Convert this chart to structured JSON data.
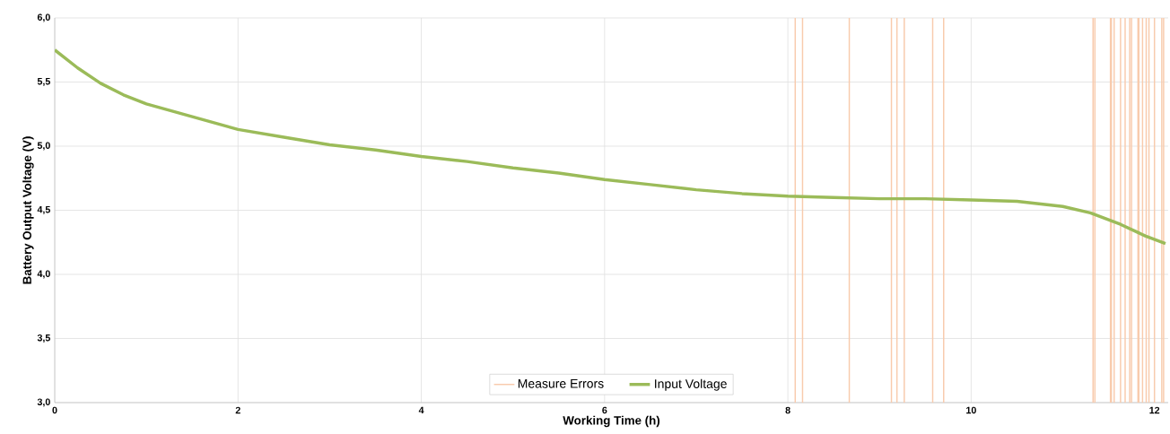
{
  "chart_data": {
    "type": "line",
    "xlabel": "Working Time (h)",
    "ylabel": "Battery Output Voltage (V)",
    "xlim": [
      0,
      12.15
    ],
    "ylim": [
      3,
      6
    ],
    "xticks": [
      0,
      2,
      4,
      6,
      8,
      10,
      12
    ],
    "yticks": [
      {
        "value": 3,
        "label": "3,0"
      },
      {
        "value": 3.5,
        "label": "3,5"
      },
      {
        "value": 4,
        "label": "4,0"
      },
      {
        "value": 4.5,
        "label": "4,5"
      },
      {
        "value": 5,
        "label": "5,0"
      },
      {
        "value": 5.5,
        "label": "5,5"
      },
      {
        "value": 6,
        "label": "6,0"
      }
    ],
    "grid": true,
    "legend": "bottom",
    "marker": "none",
    "line_style": "solid",
    "series": [
      {
        "name": "Measure Errors",
        "color": "#f8cbad",
        "x": [
          8.08,
          8.08,
          null,
          8.16,
          8.16,
          null,
          8.67,
          8.67,
          null,
          9.13,
          9.13,
          null,
          9.19,
          9.19,
          null,
          9.27,
          9.27,
          null,
          9.58,
          9.58,
          null,
          9.7,
          9.7,
          null,
          11.33,
          11.33,
          null,
          11.35,
          11.35,
          null,
          11.52,
          11.52,
          null,
          11.53,
          11.53,
          null,
          11.56,
          11.56,
          null,
          11.63,
          11.63,
          null,
          11.68,
          11.68,
          null,
          11.73,
          11.73,
          null,
          11.75,
          11.75,
          null,
          11.82,
          11.82,
          null,
          11.83,
          11.83,
          null,
          11.87,
          11.87,
          null,
          11.91,
          11.91,
          null,
          11.94,
          11.94,
          null,
          12.0,
          12.0,
          null,
          12.08,
          12.08,
          null,
          12.1,
          12.1,
          null
        ],
        "values": [
          3,
          6,
          null,
          3,
          6,
          null,
          3,
          6,
          null,
          3,
          6,
          null,
          3,
          6,
          null,
          3,
          6,
          null,
          3,
          6,
          null,
          3,
          6,
          null,
          3,
          6,
          null,
          3,
          6,
          null,
          3,
          6,
          null,
          3,
          6,
          null,
          3,
          6,
          null,
          3,
          6,
          null,
          3,
          6,
          null,
          3,
          6,
          null,
          3,
          6,
          null,
          3,
          6,
          null,
          3,
          6,
          null,
          3,
          6,
          null,
          3,
          6,
          null,
          3,
          6,
          null,
          3,
          6,
          null,
          3,
          6,
          null,
          3,
          6,
          null
        ]
      },
      {
        "name": "Input Voltage",
        "color": "#9bbb59",
        "x": [
          0,
          0.25,
          0.5,
          0.75,
          1,
          1.5,
          2,
          2.5,
          3,
          3.5,
          4,
          4.5,
          5,
          5.5,
          6,
          6.5,
          7,
          7.5,
          8,
          8.5,
          9,
          9.5,
          10,
          10.5,
          11,
          11.3,
          11.63,
          11.9,
          12.12
        ],
        "values": [
          5.75,
          5.61,
          5.49,
          5.4,
          5.33,
          5.23,
          5.13,
          5.07,
          5.01,
          4.97,
          4.92,
          4.88,
          4.83,
          4.79,
          4.74,
          4.7,
          4.66,
          4.63,
          4.61,
          4.6,
          4.59,
          4.59,
          4.58,
          4.57,
          4.53,
          4.48,
          4.39,
          4.3,
          4.24
        ]
      }
    ]
  }
}
